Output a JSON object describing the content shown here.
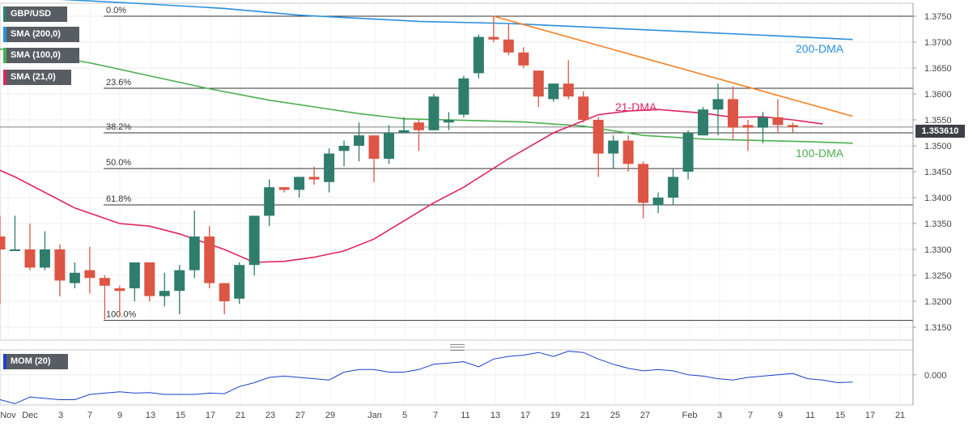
{
  "legend": {
    "symbol": "GBP/USD",
    "sma200": "SMA (200,0)",
    "sma100": "SMA (100,0)",
    "sma21": "SMA (21,0)",
    "mom": "MOM (20)"
  },
  "colors": {
    "bull": "#2f7d6d",
    "bear": "#dd5544",
    "sma200": "#2a8fde",
    "sma100": "#4caf50",
    "sma21": "#e0245e",
    "trend": "#f48224",
    "mom": "#1a3fcf"
  },
  "chart_data": [
    {
      "type": "candlestick",
      "symbol": "GBP/USD",
      "timeframe": "daily",
      "ylim": [
        1.3125,
        1.3775
      ],
      "y_ticks": [
        "1.3150",
        "1.3200",
        "1.3250",
        "1.3300",
        "1.3350",
        "1.3400",
        "1.3450",
        "1.3500",
        "1.3550",
        "1.3600",
        "1.3650",
        "1.3700",
        "1.3750"
      ],
      "x_labels": [
        "Nov",
        "Dec",
        "3",
        "7",
        "9",
        "13",
        "15",
        "17",
        "21",
        "23",
        "27",
        "29",
        "Jan",
        "5",
        "7",
        "11",
        "13",
        "17",
        "19",
        "21",
        "25",
        "27",
        "Feb",
        "3",
        "7",
        "9",
        "11",
        "15",
        "17",
        "21"
      ],
      "current_price": "1.353610",
      "candles": [
        {
          "o": 1.3325,
          "h": 1.3365,
          "l": 1.3195,
          "c": 1.33
        },
        {
          "o": 1.33,
          "h": 1.3365,
          "l": 1.33,
          "c": 1.33
        },
        {
          "o": 1.33,
          "h": 1.335,
          "l": 1.326,
          "c": 1.3265
        },
        {
          "o": 1.3265,
          "h": 1.3335,
          "l": 1.326,
          "c": 1.33
        },
        {
          "o": 1.33,
          "h": 1.331,
          "l": 1.321,
          "c": 1.324
        },
        {
          "o": 1.3235,
          "h": 1.3275,
          "l": 1.3225,
          "c": 1.3255
        },
        {
          "o": 1.326,
          "h": 1.3305,
          "l": 1.3215,
          "c": 1.3245
        },
        {
          "o": 1.3245,
          "h": 1.325,
          "l": 1.3165,
          "c": 1.323
        },
        {
          "o": 1.3225,
          "h": 1.323,
          "l": 1.317,
          "c": 1.322
        },
        {
          "o": 1.3225,
          "h": 1.3275,
          "l": 1.32,
          "c": 1.3275
        },
        {
          "o": 1.3275,
          "h": 1.3275,
          "l": 1.32,
          "c": 1.321
        },
        {
          "o": 1.321,
          "h": 1.3255,
          "l": 1.319,
          "c": 1.322
        },
        {
          "o": 1.322,
          "h": 1.327,
          "l": 1.3175,
          "c": 1.326
        },
        {
          "o": 1.326,
          "h": 1.3375,
          "l": 1.3245,
          "c": 1.3325
        },
        {
          "o": 1.3325,
          "h": 1.3345,
          "l": 1.3225,
          "c": 1.3235
        },
        {
          "o": 1.3235,
          "h": 1.3235,
          "l": 1.3175,
          "c": 1.32
        },
        {
          "o": 1.3205,
          "h": 1.3275,
          "l": 1.3195,
          "c": 1.327
        },
        {
          "o": 1.327,
          "h": 1.3365,
          "l": 1.325,
          "c": 1.3365
        },
        {
          "o": 1.3365,
          "h": 1.3435,
          "l": 1.3345,
          "c": 1.342
        },
        {
          "o": 1.342,
          "h": 1.342,
          "l": 1.341,
          "c": 1.3415
        },
        {
          "o": 1.3415,
          "h": 1.344,
          "l": 1.34,
          "c": 1.344
        },
        {
          "o": 1.344,
          "h": 1.346,
          "l": 1.3425,
          "c": 1.3435
        },
        {
          "o": 1.343,
          "h": 1.3495,
          "l": 1.341,
          "c": 1.3485
        },
        {
          "o": 1.349,
          "h": 1.351,
          "l": 1.346,
          "c": 1.35
        },
        {
          "o": 1.35,
          "h": 1.3545,
          "l": 1.347,
          "c": 1.352
        },
        {
          "o": 1.352,
          "h": 1.352,
          "l": 1.343,
          "c": 1.3475
        },
        {
          "o": 1.3475,
          "h": 1.354,
          "l": 1.3465,
          "c": 1.3525
        },
        {
          "o": 1.3525,
          "h": 1.3555,
          "l": 1.3525,
          "c": 1.353
        },
        {
          "o": 1.3545,
          "h": 1.355,
          "l": 1.349,
          "c": 1.353
        },
        {
          "o": 1.353,
          "h": 1.36,
          "l": 1.353,
          "c": 1.3595
        },
        {
          "o": 1.3545,
          "h": 1.3565,
          "l": 1.353,
          "c": 1.355
        },
        {
          "o": 1.356,
          "h": 1.3635,
          "l": 1.3555,
          "c": 1.363
        },
        {
          "o": 1.364,
          "h": 1.3715,
          "l": 1.363,
          "c": 1.371
        },
        {
          "o": 1.371,
          "h": 1.375,
          "l": 1.37,
          "c": 1.3705
        },
        {
          "o": 1.3705,
          "h": 1.3735,
          "l": 1.3675,
          "c": 1.368
        },
        {
          "o": 1.368,
          "h": 1.369,
          "l": 1.365,
          "c": 1.3655
        },
        {
          "o": 1.3645,
          "h": 1.3645,
          "l": 1.3575,
          "c": 1.3595
        },
        {
          "o": 1.359,
          "h": 1.362,
          "l": 1.3585,
          "c": 1.362
        },
        {
          "o": 1.362,
          "h": 1.3665,
          "l": 1.359,
          "c": 1.3595
        },
        {
          "o": 1.3595,
          "h": 1.3605,
          "l": 1.3545,
          "c": 1.355
        },
        {
          "o": 1.355,
          "h": 1.3555,
          "l": 1.344,
          "c": 1.3485
        },
        {
          "o": 1.3485,
          "h": 1.352,
          "l": 1.3455,
          "c": 1.351
        },
        {
          "o": 1.351,
          "h": 1.352,
          "l": 1.345,
          "c": 1.3465
        },
        {
          "o": 1.3465,
          "h": 1.347,
          "l": 1.336,
          "c": 1.339
        },
        {
          "o": 1.3385,
          "h": 1.341,
          "l": 1.337,
          "c": 1.34
        },
        {
          "o": 1.34,
          "h": 1.3455,
          "l": 1.3385,
          "c": 1.344
        },
        {
          "o": 1.345,
          "h": 1.353,
          "l": 1.3435,
          "c": 1.3525
        },
        {
          "o": 1.352,
          "h": 1.3575,
          "l": 1.352,
          "c": 1.357
        },
        {
          "o": 1.357,
          "h": 1.362,
          "l": 1.352,
          "c": 1.359
        },
        {
          "o": 1.359,
          "h": 1.3615,
          "l": 1.351,
          "c": 1.3535
        },
        {
          "o": 1.354,
          "h": 1.355,
          "l": 1.349,
          "c": 1.3535
        },
        {
          "o": 1.3535,
          "h": 1.3565,
          "l": 1.3505,
          "c": 1.3555
        },
        {
          "o": 1.3555,
          "h": 1.359,
          "l": 1.3525,
          "c": 1.354
        },
        {
          "o": 1.354,
          "h": 1.3545,
          "l": 1.3525,
          "c": 1.3536
        }
      ],
      "moving_averages": [
        {
          "name": "200-DMA",
          "label": "200-DMA",
          "points": [
            [
              -1,
              1.379
            ],
            [
              9,
              1.3775
            ],
            [
              15,
              1.3765
            ],
            [
              20,
              1.3752
            ],
            [
              28,
              1.374
            ],
            [
              34,
              1.3736
            ],
            [
              40,
              1.3728
            ],
            [
              46,
              1.372
            ],
            [
              52,
              1.3712
            ],
            [
              57,
              1.3705
            ]
          ]
        },
        {
          "name": "100-DMA",
          "label": "100-DMA",
          "points": [
            [
              -1,
              1.369
            ],
            [
              2,
              1.368
            ],
            [
              6,
              1.366
            ],
            [
              10,
              1.3635
            ],
            [
              14,
              1.361
            ],
            [
              18,
              1.3588
            ],
            [
              21,
              1.3575
            ],
            [
              24,
              1.3562
            ],
            [
              27,
              1.3552
            ],
            [
              31,
              1.3549
            ],
            [
              35,
              1.3546
            ],
            [
              39,
              1.3538
            ],
            [
              43,
              1.352
            ],
            [
              47,
              1.3513
            ],
            [
              51,
              1.351
            ],
            [
              54,
              1.3508
            ],
            [
              57,
              1.3505
            ]
          ]
        },
        {
          "name": "21-DMA",
          "label": "21-DMA",
          "points": [
            [
              -1,
              1.3465
            ],
            [
              1,
              1.344
            ],
            [
              5,
              1.338
            ],
            [
              8,
              1.335
            ],
            [
              10,
              1.3345
            ],
            [
              12,
              1.333
            ],
            [
              15,
              1.33
            ],
            [
              17,
              1.3275
            ],
            [
              19,
              1.3277
            ],
            [
              21,
              1.3285
            ],
            [
              23,
              1.3297
            ],
            [
              25,
              1.332
            ],
            [
              27,
              1.3355
            ],
            [
              29,
              1.339
            ],
            [
              31,
              1.342
            ],
            [
              34,
              1.3475
            ],
            [
              37,
              1.3525
            ],
            [
              40,
              1.356
            ],
            [
              42,
              1.3567
            ],
            [
              44,
              1.357
            ],
            [
              47,
              1.3563
            ],
            [
              49,
              1.3555
            ],
            [
              51,
              1.3556
            ],
            [
              53,
              1.355
            ],
            [
              55,
              1.3542
            ]
          ]
        }
      ],
      "trendline": {
        "name": "resistance",
        "points": [
          [
            33,
            1.375
          ],
          [
            57,
            1.3557
          ]
        ]
      },
      "fibonacci": [
        {
          "label": "0.0%",
          "value": 1.375
        },
        {
          "label": "23.6%",
          "value": 1.3611
        },
        {
          "label": "38.2%",
          "value": 1.3525
        },
        {
          "label": "50.0%",
          "value": 1.3456
        },
        {
          "label": "61.8%",
          "value": 1.3386
        },
        {
          "label": "100.0%",
          "value": 1.3163
        }
      ]
    },
    {
      "type": "line",
      "name": "MOM (20)",
      "y_ticks": [
        "0.000"
      ],
      "values": [
        -0.0095,
        -0.011,
        -0.0085,
        -0.009,
        -0.0095,
        -0.0095,
        -0.0075,
        -0.007,
        -0.0065,
        -0.007,
        -0.0068,
        -0.0075,
        -0.0075,
        -0.0075,
        -0.007,
        -0.0072,
        -0.0045,
        -0.003,
        -0.001,
        -0.0005,
        -0.001,
        -0.0015,
        -0.002,
        0.001,
        0.002,
        0.002,
        0.001,
        0.001,
        0.002,
        0.004,
        0.0045,
        0.005,
        0.003,
        0.006,
        0.007,
        0.0075,
        0.0085,
        0.007,
        0.009,
        0.0085,
        0.006,
        0.004,
        0.0025,
        0.0015,
        0.002,
        0.0015,
        0.0,
        -0.0005,
        -0.0015,
        -0.002,
        -0.001,
        -0.0005,
        0.0,
        0.0005,
        -0.0015,
        -0.002,
        -0.003,
        -0.0028
      ],
      "ylim": [
        -0.0115,
        0.0095
      ]
    }
  ]
}
